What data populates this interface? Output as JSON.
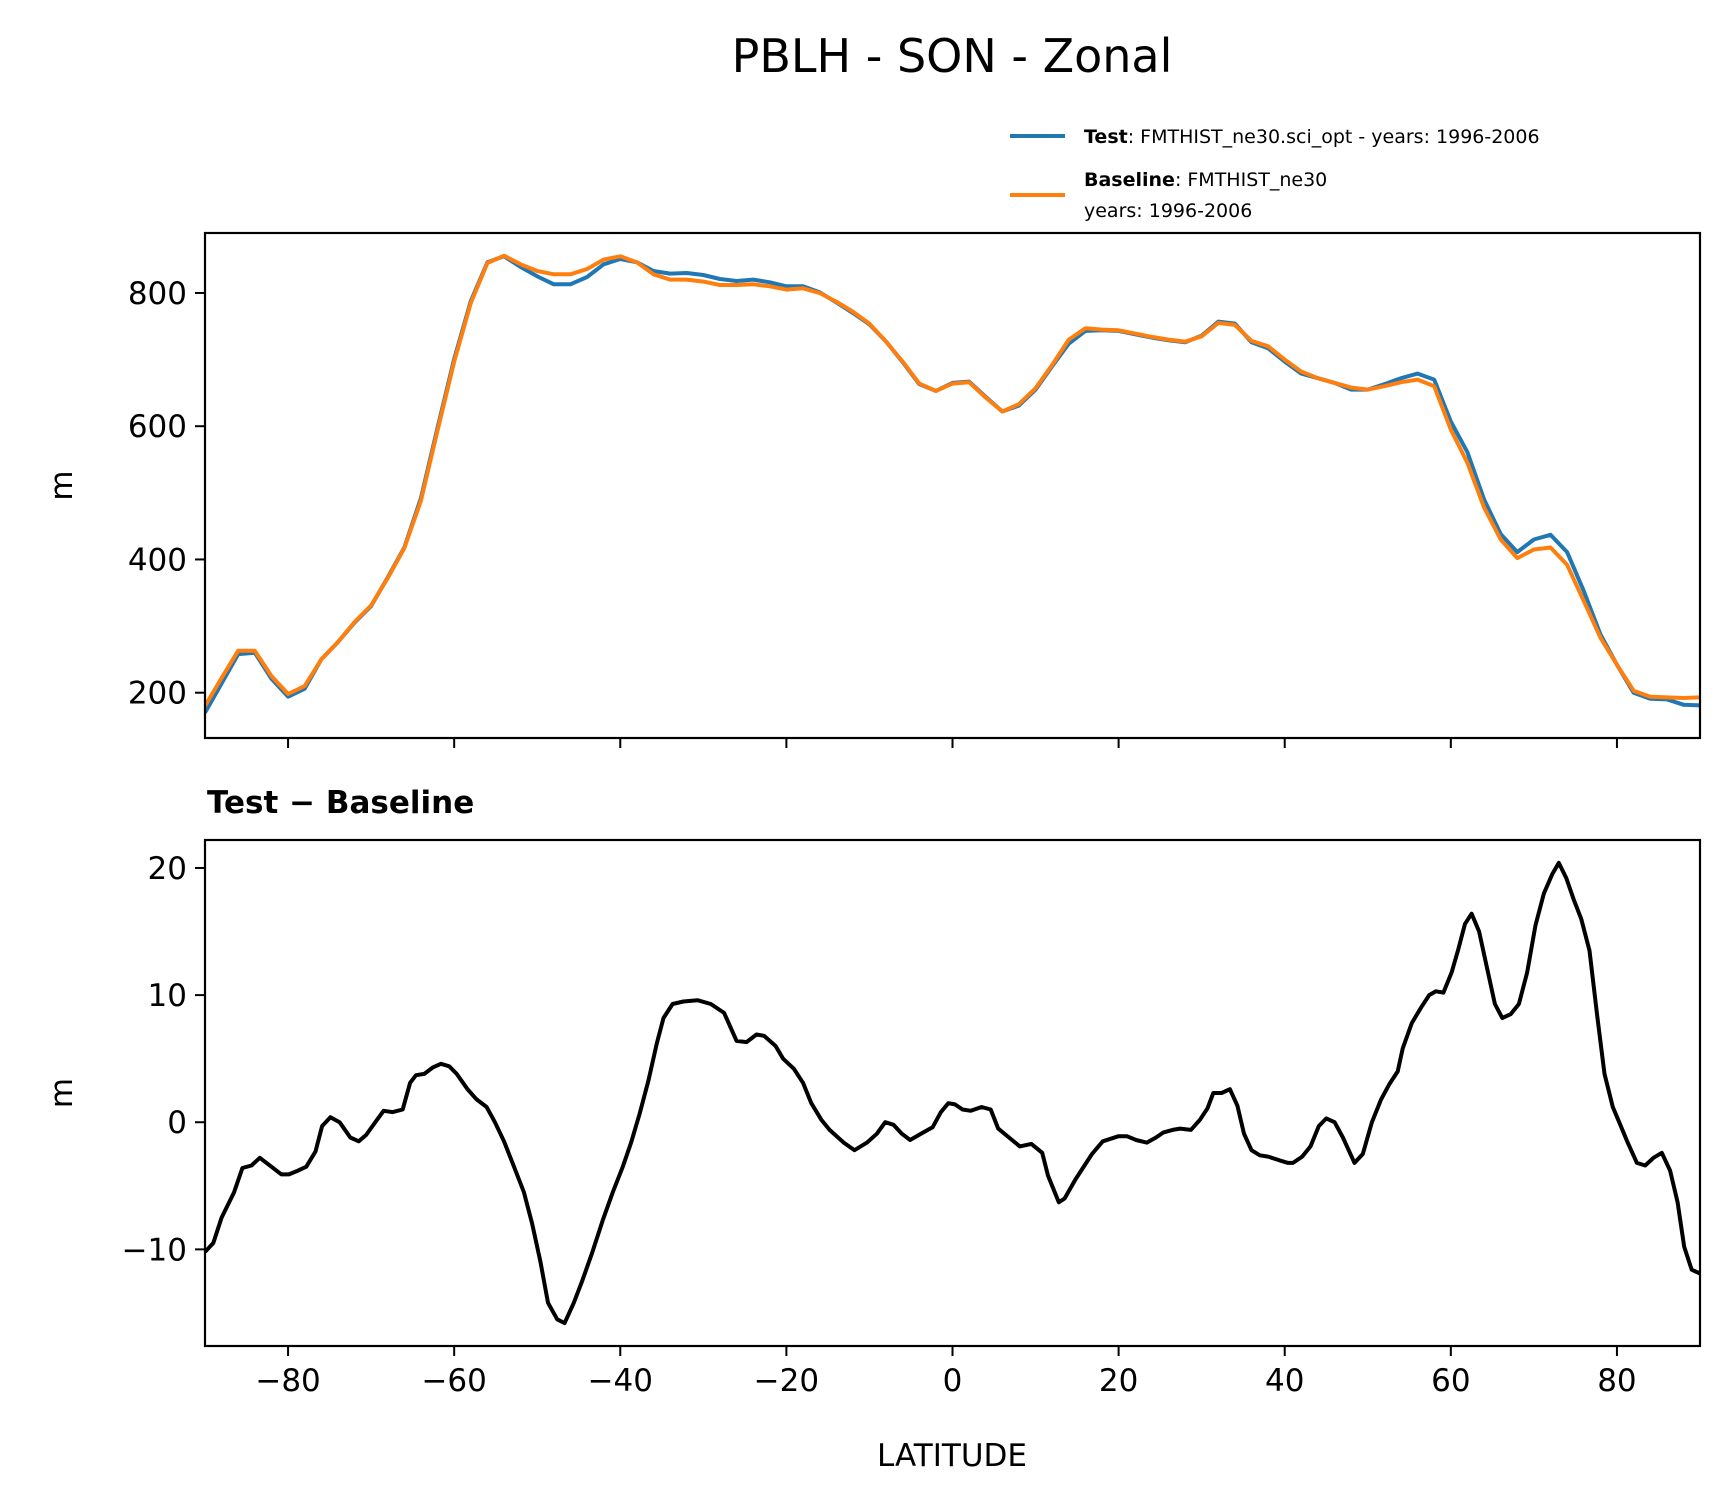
{
  "chart_data": [
    {
      "type": "line",
      "title": "PBLH - SON - Zonal",
      "xlabel": "",
      "ylabel": "m",
      "xlim": [
        -90,
        90
      ],
      "ylim": [
        132,
        890
      ],
      "xticks": [
        -80,
        -60,
        -40,
        -20,
        0,
        20,
        40,
        60,
        80
      ],
      "yticks": [
        200,
        400,
        600,
        800
      ],
      "ytick_labels": [
        "200",
        "400",
        "600",
        "800"
      ],
      "grid": false,
      "legend_position": "above-top-right",
      "legend": [
        {
          "bold": "Test",
          "text": ": FMTHIST_ne30.sci_opt - years: 1996-2006",
          "color": "#1f77b4"
        },
        {
          "bold": "Baseline",
          "text": ": FMTHIST_ne30",
          "text2": "years: 1996-2006",
          "color": "#ff7f0e"
        }
      ],
      "x": [
        -90,
        -88,
        -86,
        -84,
        -82,
        -80,
        -78,
        -76,
        -74,
        -72,
        -70,
        -68,
        -66,
        -64,
        -62,
        -60,
        -58,
        -56,
        -54,
        -52,
        -50,
        -48,
        -46,
        -44,
        -42,
        -40,
        -38,
        -36,
        -34,
        -32,
        -30,
        -28,
        -26,
        -24,
        -22,
        -20,
        -18,
        -16,
        -14,
        -12,
        -10,
        -8,
        -6,
        -4,
        -2,
        0,
        2,
        4,
        6,
        8,
        10,
        12,
        14,
        16,
        18,
        20,
        22,
        24,
        26,
        28,
        30,
        32,
        34,
        36,
        38,
        40,
        42,
        44,
        46,
        48,
        50,
        52,
        54,
        56,
        58,
        60,
        62,
        64,
        66,
        68,
        70,
        72,
        74,
        76,
        78,
        80,
        82,
        84,
        86,
        88,
        90
      ],
      "series": [
        {
          "name": "Test",
          "color": "#1f77b4",
          "values": [
            170,
            214,
            258,
            260,
            221,
            194,
            206,
            250,
            276,
            305,
            330,
            373,
            418,
            492,
            598,
            701,
            788,
            846,
            855,
            839,
            825,
            813,
            813,
            824,
            843,
            851,
            846,
            833,
            829,
            830,
            827,
            821,
            818,
            820,
            816,
            810,
            810,
            801,
            786,
            770,
            753,
            727,
            696,
            663,
            653,
            665,
            667,
            644,
            622,
            631,
            655,
            690,
            724,
            743,
            744,
            743,
            738,
            733,
            729,
            726,
            736,
            757,
            754,
            726,
            717,
            697,
            679,
            672,
            665,
            655,
            655,
            663,
            672,
            679,
            670,
            607,
            561,
            490,
            438,
            411,
            430,
            437,
            411,
            353,
            288,
            242,
            200,
            191,
            190,
            182,
            181
          ]
        },
        {
          "name": "Baseline",
          "color": "#ff7f0e",
          "values": [
            180,
            222,
            263,
            263,
            225,
            198,
            210,
            250,
            276,
            306,
            331,
            372,
            417,
            488,
            594,
            697,
            785,
            845,
            856,
            843,
            833,
            828,
            828,
            836,
            850,
            855,
            846,
            828,
            820,
            820,
            817,
            812,
            812,
            813,
            810,
            805,
            807,
            800,
            787,
            772,
            754,
            727,
            697,
            664,
            653,
            664,
            666,
            643,
            622,
            633,
            657,
            692,
            730,
            747,
            745,
            744,
            739,
            734,
            730,
            727,
            735,
            755,
            752,
            728,
            720,
            700,
            682,
            672,
            665,
            658,
            655,
            660,
            666,
            670,
            660,
            595,
            545,
            478,
            430,
            402,
            415,
            418,
            392,
            338,
            283,
            242,
            203,
            194,
            193,
            192,
            193
          ]
        }
      ]
    },
    {
      "type": "line",
      "title": "Test − Baseline",
      "xlabel": "LATITUDE",
      "ylabel": "m",
      "xlim": [
        -90,
        90
      ],
      "ylim": [
        -17.6,
        22.2
      ],
      "xticks": [
        -80,
        -60,
        -40,
        -20,
        0,
        20,
        40,
        60,
        80
      ],
      "xtick_labels": [
        "−80",
        "−60",
        "−40",
        "−20",
        "0",
        "20",
        "40",
        "60",
        "80"
      ],
      "yticks": [
        -10,
        0,
        10,
        20
      ],
      "ytick_labels": [
        "−10",
        "0",
        "10",
        "20"
      ],
      "grid": false,
      "x": [
        -90,
        -89,
        -88,
        -86.5,
        -85.5,
        -84.4,
        -83.4,
        -82,
        -80.8,
        -79.9,
        -78.8,
        -77.8,
        -76.7,
        -75.9,
        -74.9,
        -73.8,
        -72.5,
        -71.5,
        -70.6,
        -69.5,
        -68.5,
        -67.4,
        -66.2,
        -65.3,
        -64.6,
        -63.6,
        -62.6,
        -61.6,
        -60.6,
        -59.7,
        -58.4,
        -57.3,
        -56.1,
        -55.1,
        -54,
        -52.8,
        -51.6,
        -50.6,
        -49.6,
        -48.7,
        -47.6,
        -46.7,
        -45.6,
        -44.6,
        -43.4,
        -42.1,
        -40.9,
        -39.7,
        -38.7,
        -37.7,
        -36.6,
        -35.6,
        -34.8,
        -33.7,
        -32.4,
        -30.7,
        -29.1,
        -27.5,
        -26,
        -24.8,
        -23.6,
        -22.7,
        -21.3,
        -20.4,
        -19.1,
        -18,
        -17,
        -15.8,
        -14.8,
        -13.1,
        -11.8,
        -10.3,
        -9.1,
        -8.1,
        -7.1,
        -6.1,
        -5.1,
        -3.5,
        -2.4,
        -1.4,
        -0.5,
        0.3,
        1.2,
        2.2,
        3.5,
        4.6,
        5.5,
        6.8,
        8.1,
        9.5,
        10.8,
        11.5,
        12.8,
        13.5,
        14.8,
        16.8,
        18.1,
        20,
        21,
        22.1,
        23.4,
        24.5,
        25.4,
        26.5,
        27.4,
        28.7,
        29.8,
        30.7,
        31.4,
        32.4,
        33.4,
        34.3,
        35.1,
        36,
        37,
        38,
        39.4,
        40.4,
        41,
        42.1,
        43.1,
        44.1,
        45,
        46,
        47,
        48.4,
        49.4,
        50.5,
        51.6,
        52.6,
        53.6,
        54.2,
        55.3,
        56.4,
        57.4,
        58.2,
        59.1,
        60.1,
        60.9,
        61.7,
        62.5,
        63.4,
        64.4,
        65.3,
        66.2,
        67.2,
        68.2,
        69.2,
        70.2,
        71.2,
        72.2,
        73,
        73.9,
        74.8,
        75.7,
        76.7,
        77.6,
        78.5,
        79.5,
        80.4,
        81.3,
        82.4,
        83.4,
        84.4,
        85.4,
        86.4,
        87.3,
        88.1,
        89,
        90
      ],
      "series": [
        {
          "name": "Test − Baseline",
          "color": "#000000",
          "values": [
            -10.2,
            -9.5,
            -7.5,
            -5.5,
            -3.6,
            -3.4,
            -2.8,
            -3.5,
            -4.1,
            -4.1,
            -3.8,
            -3.5,
            -2.3,
            -0.3,
            0.4,
            0,
            -1.2,
            -1.5,
            -1.0,
            0,
            0.9,
            0.8,
            1.0,
            3.1,
            3.7,
            3.8,
            4.3,
            4.6,
            4.4,
            3.8,
            2.6,
            1.8,
            1.2,
            0,
            -1.5,
            -3.5,
            -5.5,
            -8.0,
            -11,
            -14.2,
            -15.5,
            -15.8,
            -14.2,
            -12.5,
            -10.3,
            -7.7,
            -5.5,
            -3.5,
            -1.6,
            0.6,
            3.3,
            6.2,
            8.2,
            9.3,
            9.5,
            9.6,
            9.3,
            8.6,
            6.4,
            6.3,
            6.9,
            6.8,
            6.0,
            5.0,
            4.2,
            3.1,
            1.5,
            0.2,
            -0.6,
            -1.6,
            -2.2,
            -1.6,
            -0.9,
            0,
            -0.2,
            -0.9,
            -1.4,
            -0.8,
            -0.4,
            0.8,
            1.5,
            1.4,
            1.0,
            0.9,
            1.2,
            1.0,
            -0.5,
            -1.2,
            -1.9,
            -1.7,
            -2.4,
            -4.2,
            -6.3,
            -6.0,
            -4.5,
            -2.5,
            -1.5,
            -1.1,
            -1.1,
            -1.4,
            -1.6,
            -1.2,
            -0.8,
            -0.6,
            -0.5,
            -0.6,
            0.2,
            1.1,
            2.3,
            2.3,
            2.6,
            1.3,
            -0.9,
            -2.2,
            -2.6,
            -2.7,
            -3.0,
            -3.2,
            -3.2,
            -2.7,
            -1.9,
            -0.3,
            0.3,
            0,
            -1.2,
            -3.2,
            -2.5,
            0,
            1.8,
            3.0,
            4.0,
            5.8,
            7.8,
            9.0,
            10.0,
            10.3,
            10.2,
            11.8,
            13.6,
            15.6,
            16.4,
            15.0,
            12.0,
            9.3,
            8.2,
            8.5,
            9.3,
            11.8,
            15.5,
            18.0,
            19.5,
            20.4,
            19.2,
            17.5,
            16.0,
            13.5,
            8.5,
            3.8,
            1.2,
            -0.2,
            -1.6,
            -3.2,
            -3.4,
            -2.8,
            -2.4,
            -3.8,
            -6.3,
            -9.8,
            -11.6,
            -11.9
          ]
        }
      ]
    }
  ]
}
